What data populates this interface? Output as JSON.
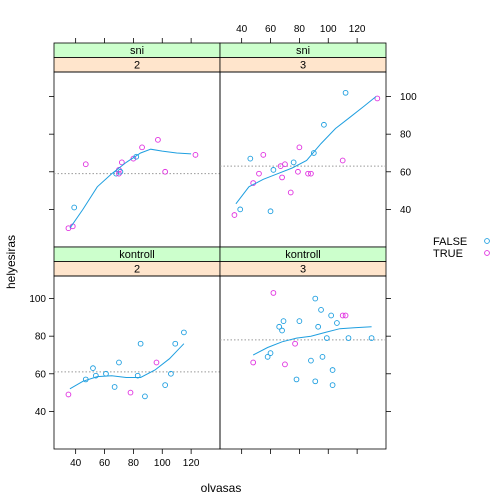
{
  "chart_data": {
    "type": "scatter",
    "title": "",
    "xlabel": "olvasas",
    "ylabel": "helyesiras",
    "xlim": [
      25,
      140
    ],
    "ylim": [
      20,
      112
    ],
    "x_ticks": [
      40,
      60,
      80,
      100,
      120
    ],
    "y_ticks": [
      40,
      60,
      80,
      100
    ],
    "colors": {
      "FALSE": "#1f9fe0",
      "TRUE": "#e030e0",
      "strip_top": "#ccffcc",
      "strip_bottom": "#ffe5cc",
      "smooth": "#1f9fe0",
      "refline": "#999999"
    },
    "legend": {
      "placement": "right",
      "entries": [
        {
          "label": "FALSE",
          "key": "FALSE"
        },
        {
          "label": "TRUE",
          "key": "TRUE"
        }
      ]
    },
    "panels": [
      {
        "id": "sni-2",
        "strip_top": "sni",
        "strip_bottom": "2",
        "points": [
          {
            "x": 35,
            "y": 30,
            "group": "TRUE"
          },
          {
            "x": 38,
            "y": 31,
            "group": "TRUE"
          },
          {
            "x": 39,
            "y": 41,
            "group": "FALSE"
          },
          {
            "x": 47,
            "y": 64,
            "group": "TRUE"
          },
          {
            "x": 68,
            "y": 59,
            "group": "FALSE"
          },
          {
            "x": 70,
            "y": 61,
            "group": "TRUE"
          },
          {
            "x": 70,
            "y": 59,
            "group": "TRUE"
          },
          {
            "x": 71,
            "y": 60,
            "group": "FALSE"
          },
          {
            "x": 72,
            "y": 65,
            "group": "TRUE"
          },
          {
            "x": 80,
            "y": 67,
            "group": "TRUE"
          },
          {
            "x": 82,
            "y": 68,
            "group": "FALSE"
          },
          {
            "x": 86,
            "y": 73,
            "group": "TRUE"
          },
          {
            "x": 97,
            "y": 77,
            "group": "TRUE"
          },
          {
            "x": 102,
            "y": 60,
            "group": "TRUE"
          },
          {
            "x": 123,
            "y": 69,
            "group": "TRUE"
          }
        ],
        "smooth": [
          [
            36,
            30
          ],
          [
            45,
            40
          ],
          [
            55,
            52
          ],
          [
            65,
            59
          ],
          [
            75,
            65
          ],
          [
            85,
            70
          ],
          [
            92,
            72
          ],
          [
            100,
            71
          ],
          [
            110,
            70
          ],
          [
            120,
            69.5
          ]
        ],
        "refline": 59
      },
      {
        "id": "sni-3",
        "strip_top": "sni",
        "strip_bottom": "3",
        "points": [
          {
            "x": 35,
            "y": 37,
            "group": "TRUE"
          },
          {
            "x": 39,
            "y": 40,
            "group": "FALSE"
          },
          {
            "x": 46,
            "y": 67,
            "group": "FALSE"
          },
          {
            "x": 48,
            "y": 54,
            "group": "TRUE"
          },
          {
            "x": 52,
            "y": 59,
            "group": "TRUE"
          },
          {
            "x": 55,
            "y": 69,
            "group": "TRUE"
          },
          {
            "x": 60,
            "y": 39,
            "group": "FALSE"
          },
          {
            "x": 62,
            "y": 61,
            "group": "FALSE"
          },
          {
            "x": 67,
            "y": 63,
            "group": "TRUE"
          },
          {
            "x": 68,
            "y": 57,
            "group": "TRUE"
          },
          {
            "x": 70,
            "y": 64,
            "group": "TRUE"
          },
          {
            "x": 74,
            "y": 49,
            "group": "TRUE"
          },
          {
            "x": 76,
            "y": 65,
            "group": "FALSE"
          },
          {
            "x": 79,
            "y": 60,
            "group": "TRUE"
          },
          {
            "x": 80,
            "y": 73,
            "group": "TRUE"
          },
          {
            "x": 86,
            "y": 59,
            "group": "TRUE"
          },
          {
            "x": 88,
            "y": 59,
            "group": "TRUE"
          },
          {
            "x": 90,
            "y": 70,
            "group": "FALSE"
          },
          {
            "x": 97,
            "y": 85,
            "group": "FALSE"
          },
          {
            "x": 110,
            "y": 66,
            "group": "TRUE"
          },
          {
            "x": 112,
            "y": 102,
            "group": "FALSE"
          },
          {
            "x": 134,
            "y": 99,
            "group": "TRUE"
          }
        ],
        "smooth": [
          [
            36,
            43
          ],
          [
            45,
            52
          ],
          [
            55,
            56
          ],
          [
            65,
            59
          ],
          [
            75,
            62
          ],
          [
            85,
            66
          ],
          [
            95,
            75
          ],
          [
            105,
            83
          ],
          [
            115,
            89
          ],
          [
            125,
            95
          ],
          [
            133,
            100
          ]
        ],
        "refline": 63
      },
      {
        "id": "kontroll-2",
        "strip_top": "kontroll",
        "strip_bottom": "2",
        "points": [
          {
            "x": 35,
            "y": 49,
            "group": "TRUE"
          },
          {
            "x": 47,
            "y": 57,
            "group": "FALSE"
          },
          {
            "x": 52,
            "y": 63,
            "group": "FALSE"
          },
          {
            "x": 54,
            "y": 59,
            "group": "FALSE"
          },
          {
            "x": 61,
            "y": 60,
            "group": "FALSE"
          },
          {
            "x": 67,
            "y": 53,
            "group": "FALSE"
          },
          {
            "x": 70,
            "y": 66,
            "group": "FALSE"
          },
          {
            "x": 78,
            "y": 50,
            "group": "TRUE"
          },
          {
            "x": 83,
            "y": 59,
            "group": "FALSE"
          },
          {
            "x": 85,
            "y": 76,
            "group": "FALSE"
          },
          {
            "x": 88,
            "y": 48,
            "group": "FALSE"
          },
          {
            "x": 96,
            "y": 66,
            "group": "TRUE"
          },
          {
            "x": 102,
            "y": 54,
            "group": "FALSE"
          },
          {
            "x": 106,
            "y": 60,
            "group": "FALSE"
          },
          {
            "x": 109,
            "y": 76,
            "group": "FALSE"
          },
          {
            "x": 115,
            "y": 82,
            "group": "FALSE"
          }
        ],
        "smooth": [
          [
            36,
            52
          ],
          [
            45,
            56
          ],
          [
            55,
            58.5
          ],
          [
            65,
            59
          ],
          [
            75,
            58
          ],
          [
            85,
            58
          ],
          [
            95,
            62
          ],
          [
            105,
            68
          ],
          [
            110,
            72
          ],
          [
            115,
            76
          ]
        ],
        "refline": 61
      },
      {
        "id": "kontroll-3",
        "strip_top": "kontroll",
        "strip_bottom": "3",
        "points": [
          {
            "x": 48,
            "y": 66,
            "group": "TRUE"
          },
          {
            "x": 58,
            "y": 69,
            "group": "FALSE"
          },
          {
            "x": 60,
            "y": 71,
            "group": "FALSE"
          },
          {
            "x": 62,
            "y": 103,
            "group": "TRUE"
          },
          {
            "x": 66,
            "y": 85,
            "group": "FALSE"
          },
          {
            "x": 68,
            "y": 83,
            "group": "FALSE"
          },
          {
            "x": 69,
            "y": 88,
            "group": "FALSE"
          },
          {
            "x": 70,
            "y": 65,
            "group": "TRUE"
          },
          {
            "x": 77,
            "y": 76,
            "group": "TRUE"
          },
          {
            "x": 78,
            "y": 57,
            "group": "FALSE"
          },
          {
            "x": 80,
            "y": 88,
            "group": "FALSE"
          },
          {
            "x": 88,
            "y": 67,
            "group": "FALSE"
          },
          {
            "x": 91,
            "y": 100,
            "group": "FALSE"
          },
          {
            "x": 91,
            "y": 56,
            "group": "FALSE"
          },
          {
            "x": 93,
            "y": 85,
            "group": "FALSE"
          },
          {
            "x": 95,
            "y": 94,
            "group": "FALSE"
          },
          {
            "x": 96,
            "y": 69,
            "group": "FALSE"
          },
          {
            "x": 99,
            "y": 79,
            "group": "FALSE"
          },
          {
            "x": 102,
            "y": 91,
            "group": "FALSE"
          },
          {
            "x": 103,
            "y": 54,
            "group": "FALSE"
          },
          {
            "x": 103,
            "y": 62,
            "group": "FALSE"
          },
          {
            "x": 106,
            "y": 87,
            "group": "FALSE"
          },
          {
            "x": 110,
            "y": 91,
            "group": "TRUE"
          },
          {
            "x": 112,
            "y": 91,
            "group": "TRUE"
          },
          {
            "x": 114,
            "y": 79,
            "group": "FALSE"
          },
          {
            "x": 130,
            "y": 79,
            "group": "FALSE"
          }
        ],
        "smooth": [
          [
            48,
            70
          ],
          [
            58,
            74
          ],
          [
            68,
            77
          ],
          [
            78,
            79
          ],
          [
            88,
            80
          ],
          [
            98,
            82
          ],
          [
            108,
            84
          ],
          [
            118,
            84.5
          ],
          [
            130,
            85
          ]
        ],
        "refline": 78
      }
    ]
  }
}
